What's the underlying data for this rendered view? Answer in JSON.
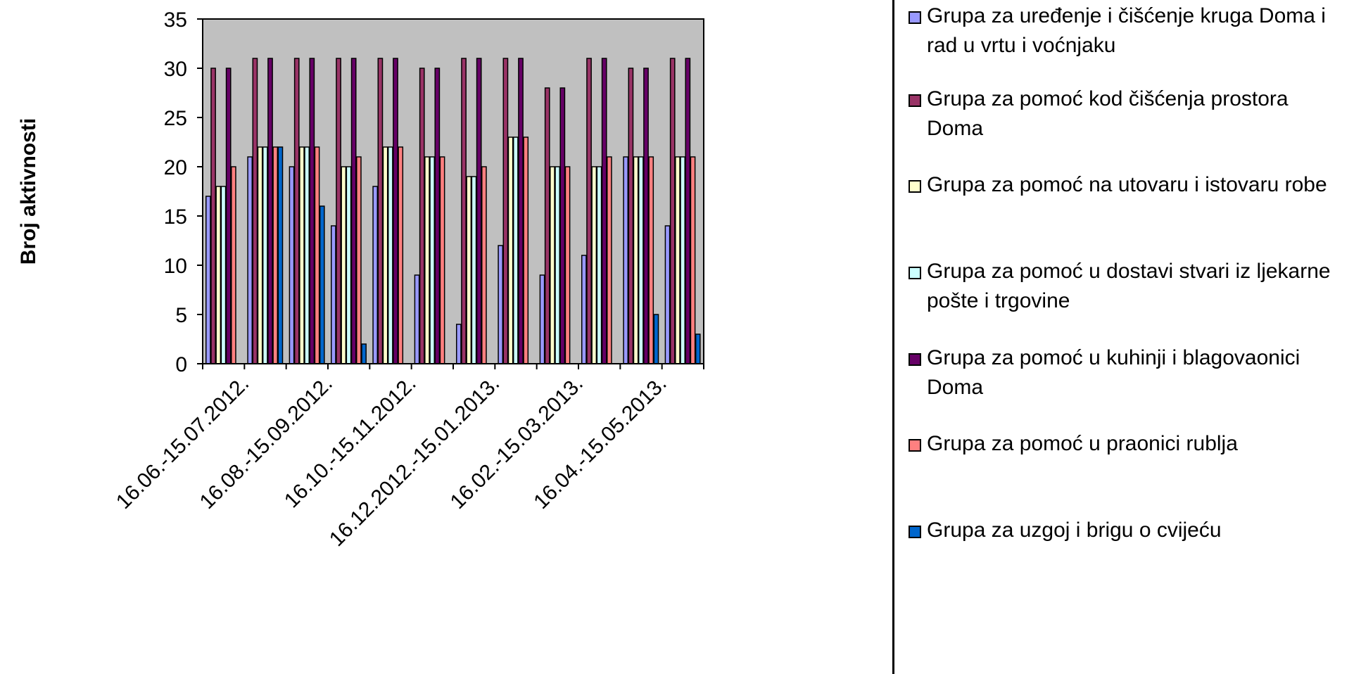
{
  "chart_data": {
    "type": "bar",
    "ylabel": "Broj aktivnosti",
    "ylim": [
      0,
      35
    ],
    "yticks": [
      "0",
      "5",
      "10",
      "15",
      "20",
      "25",
      "30",
      "35"
    ],
    "plot_background": "#C0C0C0",
    "grid": false,
    "legend_position": "right",
    "categories": [
      "16.06.-15.07.2012.",
      "",
      "16.08.-15.09.2012.",
      "",
      "16.10.-15.11.2012.",
      "",
      "16.12.2012.-15.01.2013.",
      "",
      "16.02.-15.03.2013.",
      "",
      "16.04.-15.05.2013.",
      ""
    ],
    "series": [
      {
        "name": "Grupa za uređenje i čišćenje kruga Doma i rad u vrtu i voćnjaku",
        "color": "#9999FF",
        "values": [
          17,
          21,
          20,
          14,
          18,
          9,
          4,
          12,
          9,
          11,
          21,
          14
        ]
      },
      {
        "name": "Grupa za pomoć kod čišćenja prostora Doma",
        "color": "#993366",
        "values": [
          30,
          31,
          31,
          31,
          31,
          30,
          31,
          31,
          28,
          31,
          30,
          31
        ]
      },
      {
        "name": "Grupa za pomoć na utovaru i istovaru robe",
        "color": "#FFFFCC",
        "values": [
          18,
          22,
          22,
          20,
          22,
          21,
          19,
          23,
          20,
          20,
          21,
          21
        ]
      },
      {
        "name": "Grupa za pomoć u dostavi stvari iz ljekarne pošte i trgovine",
        "color": "#CCFFFF",
        "values": [
          18,
          22,
          22,
          20,
          22,
          21,
          19,
          23,
          20,
          20,
          21,
          21
        ]
      },
      {
        "name": "Grupa za pomoć u kuhinji i blagovaonici Doma",
        "color": "#660066",
        "values": [
          30,
          31,
          31,
          31,
          31,
          30,
          31,
          31,
          28,
          31,
          30,
          31
        ]
      },
      {
        "name": "Grupa za pomoć u praonici rublja",
        "color": "#FF8080",
        "values": [
          20,
          22,
          22,
          21,
          22,
          21,
          20,
          23,
          20,
          21,
          21,
          21
        ]
      },
      {
        "name": "Grupa za uzgoj i brigu o cvijeću",
        "color": "#0066CC",
        "values": [
          0,
          22,
          16,
          2,
          0,
          0,
          0,
          0,
          0,
          0,
          5,
          3
        ]
      }
    ]
  }
}
